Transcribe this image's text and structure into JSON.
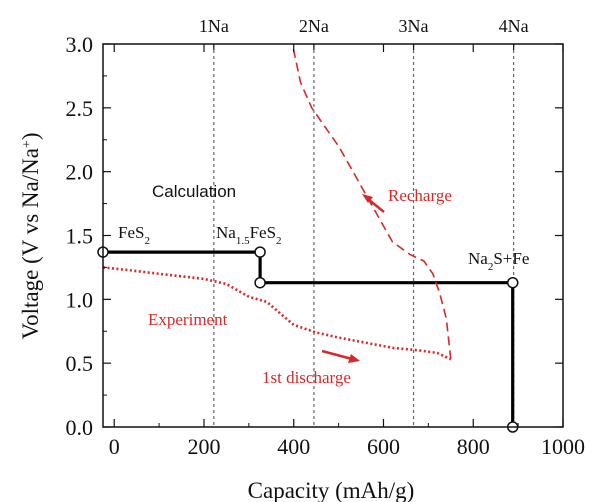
{
  "chart_data": {
    "type": "line",
    "xlabel": "Capacity (mAh/g)",
    "ylabel": "Voltage (V vs Na/Na⁺)",
    "xlim": [
      -25,
      1000
    ],
    "ylim": [
      0,
      3.0
    ],
    "x_ticks": [
      0,
      200,
      400,
      600,
      800,
      1000
    ],
    "y_ticks": [
      0.0,
      0.5,
      1.0,
      1.5,
      2.0,
      2.5,
      3.0
    ],
    "y_tick_labels": [
      "0.0",
      "0.5",
      "1.0",
      "1.5",
      "2.0",
      "2.5",
      "3.0"
    ],
    "top_markers": [
      {
        "label": "1Na",
        "x": 222
      },
      {
        "label": "2Na",
        "x": 445
      },
      {
        "label": "3Na",
        "x": 667
      },
      {
        "label": "4Na",
        "x": 890
      }
    ],
    "series": [
      {
        "kind": "calculation",
        "color": "#000000",
        "style": "solid",
        "points": [
          [
            -25,
            1.37
          ],
          [
            325,
            1.37
          ],
          [
            325,
            1.13
          ],
          [
            888,
            1.13
          ],
          [
            888,
            0.0
          ]
        ],
        "open_circles": [
          [
            -25,
            1.37
          ],
          [
            325,
            1.37
          ],
          [
            325,
            1.13
          ],
          [
            888,
            1.13
          ],
          [
            888,
            0.0
          ]
        ]
      },
      {
        "kind": "experiment-discharge",
        "color": "#d42a2a",
        "style": "dotted",
        "points": [
          [
            -25,
            1.25
          ],
          [
            30,
            1.23
          ],
          [
            100,
            1.2
          ],
          [
            200,
            1.16
          ],
          [
            250,
            1.12
          ],
          [
            300,
            1.02
          ],
          [
            340,
            0.98
          ],
          [
            400,
            0.8
          ],
          [
            450,
            0.74
          ],
          [
            500,
            0.7
          ],
          [
            560,
            0.66
          ],
          [
            620,
            0.62
          ],
          [
            680,
            0.6
          ],
          [
            720,
            0.58
          ],
          [
            750,
            0.53
          ]
        ]
      },
      {
        "kind": "recharge",
        "color": "#d42a2a",
        "style": "dashed",
        "points": [
          [
            750,
            0.53
          ],
          [
            740,
            0.85
          ],
          [
            725,
            1.05
          ],
          [
            710,
            1.2
          ],
          [
            690,
            1.3
          ],
          [
            660,
            1.35
          ],
          [
            620,
            1.45
          ],
          [
            580,
            1.7
          ],
          [
            540,
            1.95
          ],
          [
            500,
            2.2
          ],
          [
            470,
            2.35
          ],
          [
            440,
            2.5
          ],
          [
            415,
            2.7
          ],
          [
            400,
            2.95
          ],
          [
            398,
            3.0
          ]
        ]
      }
    ],
    "annotations": [
      {
        "text": "Calculation",
        "x": 155,
        "y": 1.87
      },
      {
        "text": "Experiment",
        "x": 70,
        "y": 0.85
      },
      {
        "text": "Recharge",
        "x": 580,
        "y": 1.85
      },
      {
        "text": "1st discharge",
        "x": 440,
        "y": 0.38
      },
      {
        "text": "FeS₂",
        "x": 5,
        "y": 1.5
      },
      {
        "text": "Na₁.₅FeS₂",
        "x": 295,
        "y": 1.5
      },
      {
        "text": "Na₂S+Fe",
        "x": 890,
        "y": 1.3
      }
    ],
    "colors": {
      "experiment": "#d42a2a",
      "calculation": "#000000",
      "reference_lines": "#666666"
    },
    "grid": false
  }
}
